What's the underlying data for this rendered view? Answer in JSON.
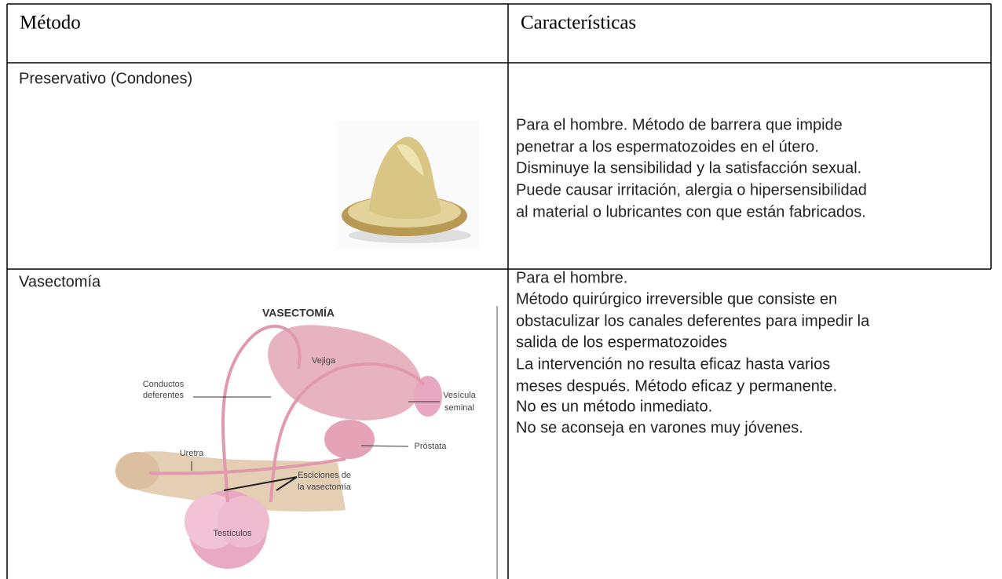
{
  "table": {
    "header": [
      "Método",
      "Características"
    ],
    "rows": [
      {
        "method": "Preservativo (Condones)",
        "description": [
          "Para el hombre. Método de barrera que impide",
          "penetrar a los espermatozoides en el útero.",
          "Disminuye la sensibilidad y la satisfacción sexual.",
          "Puede causar irritación, alergia o hipersensibilidad",
          "al material o lubricantes con que están fabricados."
        ]
      },
      {
        "method": "Vasectomía",
        "description": [
          "Para el hombre.",
          "Método quirúrgico irreversible que consiste en",
          "obstaculizar los canales deferentes para impedir la",
          "salida de los espermatozoides",
          "La intervención no resulta eficaz hasta varios",
          "meses después. Método eficaz y permanente.",
          "No es un método inmediato.",
          "No se aconseja en varones muy jóvenes."
        ],
        "figure": {
          "title": "VASECTOMÍA",
          "labels": [
            "Vejiga",
            "Conductos",
            "deferentes",
            "Vesícula",
            "seminal",
            "Próstata",
            "Uretra",
            "Esciciones de",
            "la vasectomía",
            "Testículos"
          ]
        }
      }
    ]
  }
}
